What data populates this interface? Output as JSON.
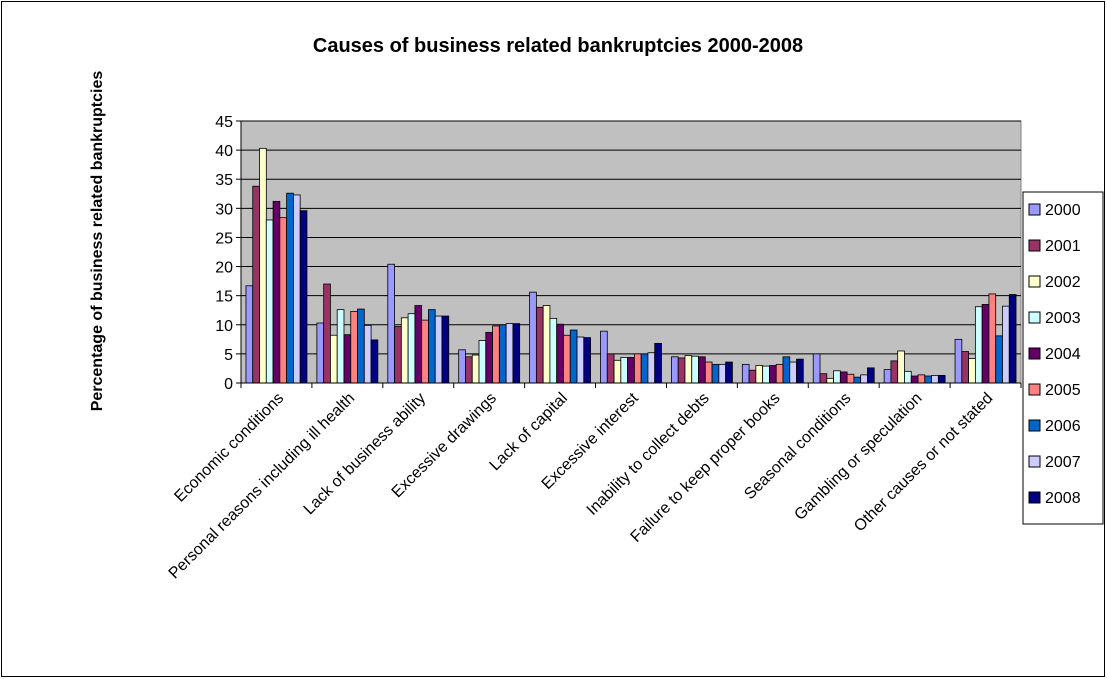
{
  "chart_data": {
    "type": "bar",
    "title": "Causes of business related bankruptcies 2000-2008",
    "xlabel": "",
    "ylabel": "Percentage of business related bankruptcies",
    "ylim": [
      0,
      45
    ],
    "yticks": [
      0,
      5,
      10,
      15,
      20,
      25,
      30,
      35,
      40,
      45
    ],
    "grid": true,
    "legend_position": "right",
    "categories": [
      "Economic conditions",
      "Personal reasons including ill health",
      "Lack of business ability",
      "Excessive drawings",
      "Lack of capital",
      "Excessive interest",
      "Inability to collect debts",
      "Failure to keep proper books",
      "Seasonal conditions",
      "Gambling or speculation",
      "Other causes or not stated"
    ],
    "series": [
      {
        "name": "2000",
        "color": "#9999ff",
        "values": [
          16.7,
          10.3,
          20.4,
          5.7,
          15.6,
          8.9,
          4.5,
          3.2,
          5.0,
          2.3,
          7.5
        ]
      },
      {
        "name": "2001",
        "color": "#993366",
        "values": [
          33.8,
          17.0,
          9.7,
          4.5,
          13.0,
          5.0,
          4.3,
          2.2,
          1.6,
          3.8,
          5.4
        ]
      },
      {
        "name": "2002",
        "color": "#ffffcc",
        "values": [
          40.3,
          8.2,
          11.2,
          4.8,
          13.3,
          3.9,
          4.7,
          3.0,
          0.8,
          5.5,
          4.2
        ]
      },
      {
        "name": "2003",
        "color": "#ccffff",
        "values": [
          28.0,
          12.6,
          11.9,
          7.3,
          11.1,
          4.4,
          4.6,
          2.9,
          2.1,
          2.0,
          13.1
        ]
      },
      {
        "name": "2004",
        "color": "#660066",
        "values": [
          31.2,
          8.3,
          13.3,
          8.7,
          10.1,
          4.4,
          4.5,
          3.0,
          1.9,
          1.2,
          13.5
        ]
      },
      {
        "name": "2005",
        "color": "#ff8080",
        "values": [
          28.4,
          12.3,
          10.8,
          9.8,
          8.2,
          5.0,
          3.6,
          3.2,
          1.5,
          1.4,
          15.3
        ]
      },
      {
        "name": "2006",
        "color": "#0066cc",
        "values": [
          32.6,
          12.7,
          12.6,
          10.0,
          9.1,
          5.0,
          3.2,
          4.5,
          1.0,
          1.2,
          8.1
        ]
      },
      {
        "name": "2007",
        "color": "#ccccff",
        "values": [
          32.3,
          9.9,
          11.5,
          10.2,
          7.9,
          5.2,
          3.2,
          3.6,
          1.4,
          1.3,
          13.2
        ]
      },
      {
        "name": "2008",
        "color": "#000080",
        "values": [
          29.6,
          7.4,
          11.5,
          10.2,
          7.8,
          6.8,
          3.6,
          4.1,
          2.6,
          1.3,
          15.2
        ]
      }
    ]
  }
}
